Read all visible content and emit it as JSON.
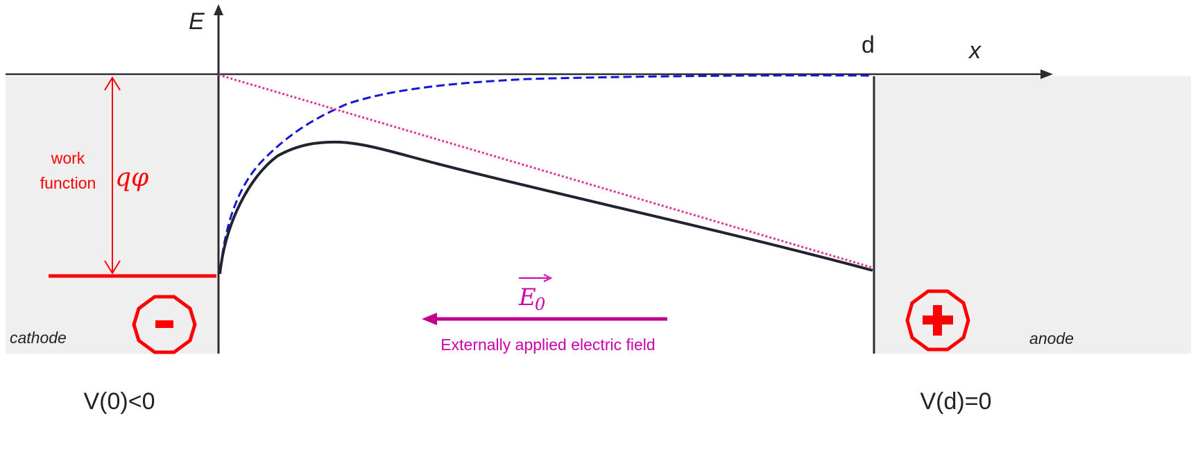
{
  "axes": {
    "y_label": "E",
    "x_label": "x",
    "d_label": "d"
  },
  "cathode": {
    "label": "cathode",
    "sign": "-",
    "potential": "V(0)<0"
  },
  "anode": {
    "label": "anode",
    "potential": "V(d)=0"
  },
  "work_function": {
    "label_line1": "work",
    "label_line2": "function",
    "symbol": "qφ"
  },
  "field": {
    "symbol": "E",
    "subscript": "0",
    "caption": "Externally applied electric field"
  },
  "colors": {
    "metal_fill": "#efefef",
    "axis": "#2b2b33",
    "red": "#ff0000",
    "magenta": "#c0008c",
    "magenta_text": "#cc00aa",
    "blue_dash": "#1515d6",
    "dotted": "#e0339c",
    "barrier": "#222230"
  }
}
